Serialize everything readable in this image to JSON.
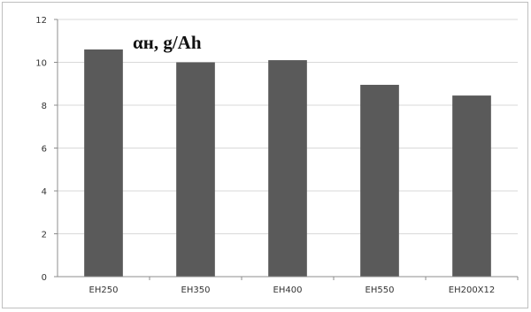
{
  "chart_data": {
    "type": "bar",
    "title": "αн, g/Ah",
    "categories": [
      "EH250",
      "EH350",
      "EH400",
      "EH550",
      "EH200X12"
    ],
    "values": [
      10.6,
      10.0,
      10.1,
      8.95,
      8.45
    ],
    "ylim": [
      0,
      12
    ],
    "yticks": [
      0,
      2,
      4,
      6,
      8,
      10,
      12
    ],
    "grid": true,
    "legend": "none",
    "colors": {
      "bar": "#5a5a5a",
      "grid": "#d9d9d9",
      "axis": "#8c8c8c",
      "frame": "#bfbfbf"
    }
  }
}
